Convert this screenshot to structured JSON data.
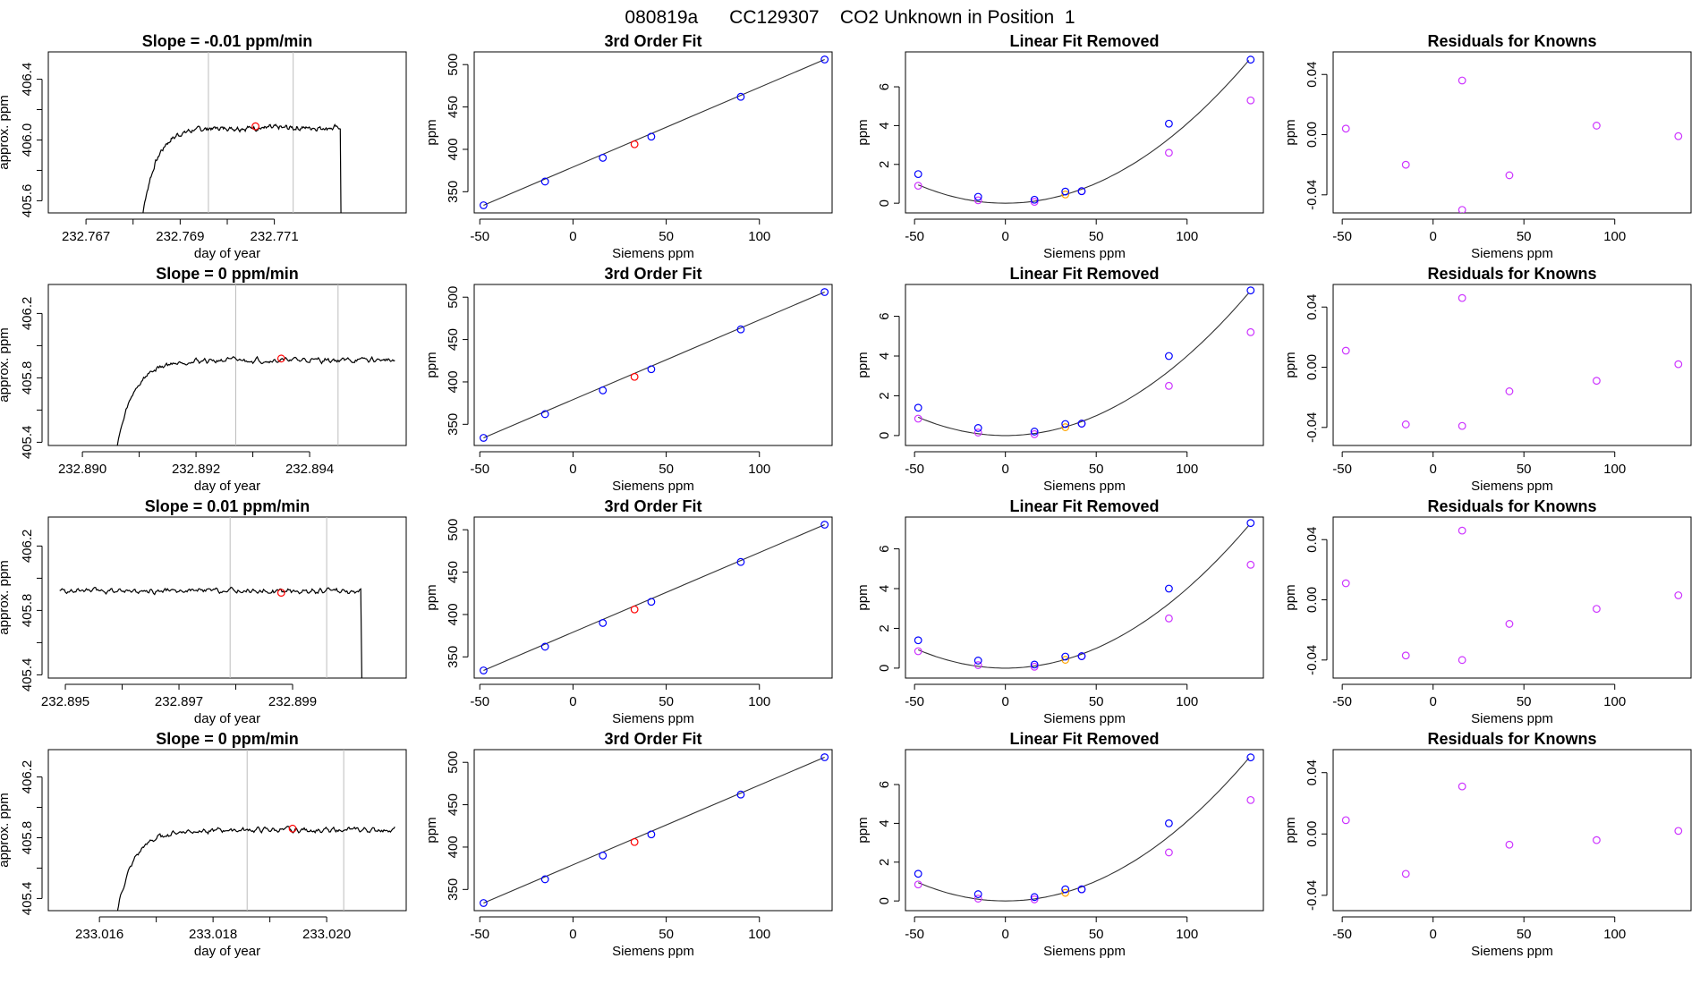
{
  "figure_title": "080819a      CC129307    CO2 Unknown in Position  1",
  "colors": {
    "trace": "#000000",
    "gray_line": "#bdbdbd",
    "red": "#ff0000",
    "blue": "#0000ff",
    "orange": "#ffa500",
    "purple": "#cc33ff"
  },
  "chart_data": [
    {
      "type": "line",
      "row": 0,
      "col": 0,
      "title": "Slope =  -0.01  ppm/min",
      "xlabel": "day of year",
      "ylabel": "approx. ppm",
      "xlim": [
        232.7662,
        232.7738
      ],
      "ylim": [
        405.52,
        406.58
      ],
      "xticks": [
        232.767,
        232.769,
        232.771
      ],
      "xtick_labels": [
        "232.767",
        "232.769",
        "232.771"
      ],
      "yticks": [
        405.6,
        406.0,
        406.4
      ],
      "ytick_labels": [
        "405.6",
        "406.0",
        "406.4"
      ],
      "vlines": [
        232.7696,
        232.7714
      ],
      "marker": {
        "x": 232.7706,
        "y": 406.09
      },
      "start": 232.7681,
      "end": 232.7724,
      "plateau": 406.08,
      "rise_tau": 0.0003,
      "tail_drop": true
    },
    {
      "type": "scatter",
      "row": 0,
      "col": 1,
      "title": "3rd Order Fit",
      "xlabel": "Siemens ppm",
      "ylabel": "ppm",
      "xlim": [
        -53,
        139
      ],
      "ylim": [
        325,
        515
      ],
      "xticks": [
        -50,
        0,
        50,
        100
      ],
      "xtick_labels": [
        "-50",
        "0",
        "50",
        "100"
      ],
      "yticks": [
        350,
        400,
        450,
        500
      ],
      "ytick_labels": [
        "350",
        "400",
        "450",
        "500"
      ],
      "blue_points": [
        [
          -48,
          334
        ],
        [
          -15,
          362
        ],
        [
          16,
          390
        ],
        [
          42,
          415
        ],
        [
          90,
          462
        ],
        [
          135,
          506
        ]
      ],
      "red_points": [
        [
          33,
          406
        ]
      ],
      "fit_line": [
        [
          -48,
          334
        ],
        [
          135,
          506
        ]
      ]
    },
    {
      "type": "scatter",
      "row": 0,
      "col": 2,
      "title": "Linear Fit Removed",
      "xlabel": "Siemens ppm",
      "ylabel": "ppm",
      "xlim": [
        -55,
        142
      ],
      "ylim": [
        -0.5,
        7.8
      ],
      "xticks": [
        -50,
        0,
        50,
        100
      ],
      "xtick_labels": [
        "-50",
        "0",
        "50",
        "100"
      ],
      "yticks": [
        0,
        2,
        4,
        6
      ],
      "ytick_labels": [
        "0",
        "2",
        "4",
        "6"
      ],
      "curve": {
        "a": 0.00041,
        "b": 0,
        "c": 0
      },
      "blue_points": [
        [
          -48,
          1.5
        ],
        [
          -15,
          0.33
        ],
        [
          16,
          0.18
        ],
        [
          33,
          0.6
        ],
        [
          42,
          0.62
        ],
        [
          90,
          4.1
        ],
        [
          135,
          7.4
        ]
      ],
      "purple_points": [
        [
          -48,
          0.9
        ],
        [
          -15,
          0.15
        ],
        [
          16,
          0.07
        ],
        [
          42,
          0.62
        ],
        [
          90,
          2.6
        ],
        [
          135,
          5.3
        ]
      ],
      "orange_points": [
        [
          33,
          0.45
        ]
      ]
    },
    {
      "type": "scatter",
      "row": 0,
      "col": 3,
      "title": "Residuals for Knowns",
      "xlabel": "Siemens ppm",
      "ylabel": "ppm",
      "xlim": [
        -55,
        142
      ],
      "ylim": [
        -0.052,
        0.055
      ],
      "xticks": [
        -50,
        0,
        50,
        100
      ],
      "xtick_labels": [
        "-50",
        "0",
        "50",
        "100"
      ],
      "yticks": [
        -0.04,
        0.0,
        0.04
      ],
      "ytick_labels": [
        "-0.04",
        "0.00",
        "0.04"
      ],
      "purple_points": [
        [
          -48,
          0.004
        ],
        [
          -15,
          -0.02
        ],
        [
          16,
          0.036
        ],
        [
          16,
          -0.05
        ],
        [
          42,
          -0.027
        ],
        [
          90,
          0.006
        ],
        [
          135,
          -0.001
        ]
      ]
    },
    {
      "type": "line",
      "row": 1,
      "col": 0,
      "title": "Slope =  0  ppm/min",
      "xlabel": "day of year",
      "ylabel": "approx. ppm",
      "xlim": [
        232.8894,
        232.8957
      ],
      "ylim": [
        405.38,
        406.38
      ],
      "xticks": [
        232.89,
        232.892,
        232.894
      ],
      "xtick_labels": [
        "232.890",
        "232.892",
        "232.894"
      ],
      "yticks": [
        405.4,
        405.8,
        406.2
      ],
      "ytick_labels": [
        "405.4",
        "405.8",
        "406.2"
      ],
      "vlines": [
        232.8927,
        232.8945
      ],
      "marker": {
        "x": 232.8935,
        "y": 405.92
      },
      "start": 232.8905,
      "end": 232.8955,
      "plateau": 405.91,
      "rise_tau": 0.0003,
      "tail_drop": false
    },
    {
      "type": "scatter",
      "row": 1,
      "col": 1,
      "title": "3rd Order Fit",
      "xlabel": "Siemens ppm",
      "ylabel": "ppm",
      "xlim": [
        -53,
        139
      ],
      "ylim": [
        325,
        515
      ],
      "xticks": [
        -50,
        0,
        50,
        100
      ],
      "xtick_labels": [
        "-50",
        "0",
        "50",
        "100"
      ],
      "yticks": [
        350,
        400,
        450,
        500
      ],
      "ytick_labels": [
        "350",
        "400",
        "450",
        "500"
      ],
      "blue_points": [
        [
          -48,
          334
        ],
        [
          -15,
          362
        ],
        [
          16,
          390
        ],
        [
          42,
          415
        ],
        [
          90,
          462
        ],
        [
          135,
          506
        ]
      ],
      "red_points": [
        [
          33,
          406
        ]
      ],
      "fit_line": [
        [
          -48,
          334
        ],
        [
          135,
          506
        ]
      ]
    },
    {
      "type": "scatter",
      "row": 1,
      "col": 2,
      "title": "Linear Fit Removed",
      "xlabel": "Siemens ppm",
      "ylabel": "ppm",
      "xlim": [
        -55,
        142
      ],
      "ylim": [
        -0.5,
        7.6
      ],
      "xticks": [
        -50,
        0,
        50,
        100
      ],
      "xtick_labels": [
        "-50",
        "0",
        "50",
        "100"
      ],
      "yticks": [
        0,
        2,
        4,
        6
      ],
      "ytick_labels": [
        "0",
        "2",
        "4",
        "6"
      ],
      "curve": {
        "a": 0.0004,
        "b": 0,
        "c": 0
      },
      "blue_points": [
        [
          -48,
          1.4
        ],
        [
          -15,
          0.38
        ],
        [
          16,
          0.2
        ],
        [
          33,
          0.58
        ],
        [
          42,
          0.6
        ],
        [
          90,
          4.0
        ],
        [
          135,
          7.3
        ]
      ],
      "purple_points": [
        [
          -48,
          0.85
        ],
        [
          -15,
          0.15
        ],
        [
          16,
          0.07
        ],
        [
          42,
          0.6
        ],
        [
          90,
          2.5
        ],
        [
          135,
          5.2
        ]
      ],
      "orange_points": [
        [
          33,
          0.42
        ]
      ]
    },
    {
      "type": "scatter",
      "row": 1,
      "col": 3,
      "title": "Residuals for Knowns",
      "xlabel": "Siemens ppm",
      "ylabel": "ppm",
      "xlim": [
        -55,
        142
      ],
      "ylim": [
        -0.052,
        0.055
      ],
      "xticks": [
        -50,
        0,
        50,
        100
      ],
      "xtick_labels": [
        "-50",
        "0",
        "50",
        "100"
      ],
      "yticks": [
        -0.04,
        0.0,
        0.04
      ],
      "ytick_labels": [
        "-0.04",
        "0.00",
        "0.04"
      ],
      "purple_points": [
        [
          -48,
          0.011
        ],
        [
          -15,
          -0.038
        ],
        [
          16,
          0.046
        ],
        [
          16,
          -0.039
        ],
        [
          42,
          -0.016
        ],
        [
          90,
          -0.009
        ],
        [
          135,
          0.002
        ]
      ]
    },
    {
      "type": "line",
      "row": 2,
      "col": 0,
      "title": "Slope =  0.01  ppm/min",
      "xlabel": "day of year",
      "ylabel": "approx. ppm",
      "xlim": [
        232.8947,
        232.901
      ],
      "ylim": [
        405.38,
        406.38
      ],
      "xticks": [
        232.895,
        232.897,
        232.899
      ],
      "xtick_labels": [
        "232.895",
        "232.897",
        "232.899"
      ],
      "yticks": [
        405.4,
        405.8,
        406.2
      ],
      "ytick_labels": [
        "405.4",
        "405.8",
        "406.2"
      ],
      "vlines": [
        232.8979,
        232.8996
      ],
      "marker": {
        "x": 232.8988,
        "y": 405.91
      },
      "start": 232.8949,
      "end": 232.9002,
      "plateau": 405.92,
      "rise_tau": 0,
      "tail_drop": true
    },
    {
      "type": "scatter",
      "row": 2,
      "col": 1,
      "title": "3rd Order Fit",
      "xlabel": "Siemens ppm",
      "ylabel": "ppm",
      "xlim": [
        -53,
        139
      ],
      "ylim": [
        325,
        515
      ],
      "xticks": [
        -50,
        0,
        50,
        100
      ],
      "xtick_labels": [
        "-50",
        "0",
        "50",
        "100"
      ],
      "yticks": [
        350,
        400,
        450,
        500
      ],
      "ytick_labels": [
        "350",
        "400",
        "450",
        "500"
      ],
      "blue_points": [
        [
          -48,
          334
        ],
        [
          -15,
          362
        ],
        [
          16,
          390
        ],
        [
          42,
          415
        ],
        [
          90,
          462
        ],
        [
          135,
          506
        ]
      ],
      "red_points": [
        [
          33,
          406
        ]
      ],
      "fit_line": [
        [
          -48,
          334
        ],
        [
          135,
          506
        ]
      ]
    },
    {
      "type": "scatter",
      "row": 2,
      "col": 2,
      "title": "Linear Fit Removed",
      "xlabel": "Siemens ppm",
      "ylabel": "ppm",
      "xlim": [
        -55,
        142
      ],
      "ylim": [
        -0.5,
        7.6
      ],
      "xticks": [
        -50,
        0,
        50,
        100
      ],
      "xtick_labels": [
        "-50",
        "0",
        "50",
        "100"
      ],
      "yticks": [
        0,
        2,
        4,
        6
      ],
      "ytick_labels": [
        "0",
        "2",
        "4",
        "6"
      ],
      "curve": {
        "a": 0.0004,
        "b": 0,
        "c": 0
      },
      "blue_points": [
        [
          -48,
          1.4
        ],
        [
          -15,
          0.38
        ],
        [
          16,
          0.18
        ],
        [
          33,
          0.58
        ],
        [
          42,
          0.6
        ],
        [
          90,
          4.0
        ],
        [
          135,
          7.3
        ]
      ],
      "purple_points": [
        [
          -48,
          0.85
        ],
        [
          -15,
          0.15
        ],
        [
          16,
          0.07
        ],
        [
          42,
          0.6
        ],
        [
          90,
          2.5
        ],
        [
          135,
          5.2
        ]
      ],
      "orange_points": [
        [
          33,
          0.42
        ]
      ]
    },
    {
      "type": "scatter",
      "row": 2,
      "col": 3,
      "title": "Residuals for Knowns",
      "xlabel": "Siemens ppm",
      "ylabel": "ppm",
      "xlim": [
        -55,
        142
      ],
      "ylim": [
        -0.052,
        0.055
      ],
      "xticks": [
        -50,
        0,
        50,
        100
      ],
      "xtick_labels": [
        "-50",
        "0",
        "50",
        "100"
      ],
      "yticks": [
        -0.04,
        0.0,
        0.04
      ],
      "ytick_labels": [
        "-0.04",
        "0.00",
        "0.04"
      ],
      "purple_points": [
        [
          -48,
          0.011
        ],
        [
          -15,
          -0.037
        ],
        [
          16,
          0.046
        ],
        [
          16,
          -0.04
        ],
        [
          42,
          -0.016
        ],
        [
          90,
          -0.006
        ],
        [
          135,
          0.003
        ]
      ]
    },
    {
      "type": "line",
      "row": 3,
      "col": 0,
      "title": "Slope =  0  ppm/min",
      "xlabel": "day of year",
      "ylabel": "approx. ppm",
      "xlim": [
        233.0151,
        233.0214
      ],
      "ylim": [
        405.32,
        406.38
      ],
      "xticks": [
        233.016,
        233.018,
        233.02
      ],
      "xtick_labels": [
        "233.016",
        "233.018",
        "233.020"
      ],
      "yticks": [
        405.4,
        405.8,
        406.2
      ],
      "ytick_labels": [
        "405.4",
        "405.8",
        "406.2"
      ],
      "vlines": [
        233.0186,
        233.0203
      ],
      "marker": {
        "x": 233.0194,
        "y": 405.86
      },
      "start": 233.0162,
      "end": 233.0212,
      "plateau": 405.85,
      "rise_tau": 0.0003,
      "tail_drop": false
    },
    {
      "type": "scatter",
      "row": 3,
      "col": 1,
      "title": "3rd Order Fit",
      "xlabel": "Siemens ppm",
      "ylabel": "ppm",
      "xlim": [
        -53,
        139
      ],
      "ylim": [
        325,
        515
      ],
      "xticks": [
        -50,
        0,
        50,
        100
      ],
      "xtick_labels": [
        "-50",
        "0",
        "50",
        "100"
      ],
      "yticks": [
        350,
        400,
        450,
        500
      ],
      "ytick_labels": [
        "350",
        "400",
        "450",
        "500"
      ],
      "blue_points": [
        [
          -48,
          334
        ],
        [
          -15,
          362
        ],
        [
          16,
          390
        ],
        [
          42,
          415
        ],
        [
          90,
          462
        ],
        [
          135,
          506
        ]
      ],
      "red_points": [
        [
          33,
          406
        ]
      ],
      "fit_line": [
        [
          -48,
          334
        ],
        [
          135,
          506
        ]
      ]
    },
    {
      "type": "scatter",
      "row": 3,
      "col": 2,
      "title": "Linear Fit Removed",
      "xlabel": "Siemens ppm",
      "ylabel": "ppm",
      "xlim": [
        -55,
        142
      ],
      "ylim": [
        -0.5,
        7.8
      ],
      "xticks": [
        -50,
        0,
        50,
        100
      ],
      "xtick_labels": [
        "-50",
        "0",
        "50",
        "100"
      ],
      "yticks": [
        0,
        2,
        4,
        6
      ],
      "ytick_labels": [
        "0",
        "2",
        "4",
        "6"
      ],
      "curve": {
        "a": 0.00041,
        "b": 0,
        "c": 0
      },
      "blue_points": [
        [
          -48,
          1.4
        ],
        [
          -15,
          0.35
        ],
        [
          16,
          0.2
        ],
        [
          33,
          0.6
        ],
        [
          42,
          0.6
        ],
        [
          90,
          4.0
        ],
        [
          135,
          7.4
        ]
      ],
      "purple_points": [
        [
          -48,
          0.85
        ],
        [
          -15,
          0.12
        ],
        [
          16,
          0.08
        ],
        [
          42,
          0.6
        ],
        [
          90,
          2.5
        ],
        [
          135,
          5.2
        ]
      ],
      "orange_points": [
        [
          33,
          0.42
        ]
      ]
    },
    {
      "type": "scatter",
      "row": 3,
      "col": 3,
      "title": "Residuals for Knowns",
      "xlabel": "Siemens ppm",
      "ylabel": "ppm",
      "xlim": [
        -55,
        142
      ],
      "ylim": [
        -0.05,
        0.055
      ],
      "xticks": [
        -50,
        0,
        50,
        100
      ],
      "xtick_labels": [
        "-50",
        "0",
        "50",
        "100"
      ],
      "yticks": [
        -0.04,
        0.0,
        0.04
      ],
      "ytick_labels": [
        "-0.04",
        "0.00",
        "0.04"
      ],
      "purple_points": [
        [
          -48,
          0.009
        ],
        [
          -15,
          -0.026
        ],
        [
          16,
          0.031
        ],
        [
          42,
          -0.007
        ],
        [
          90,
          -0.004
        ],
        [
          135,
          0.002
        ]
      ]
    }
  ]
}
